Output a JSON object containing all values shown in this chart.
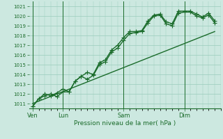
{
  "title": "",
  "xlabel": "Pression niveau de la mer( hPa )",
  "ylabel": "",
  "bg_color": "#cce8e0",
  "grid_color": "#99ccbb",
  "line_color": "#1a6b2a",
  "ylim": [
    1010.5,
    1021.5
  ],
  "yticks": [
    1011,
    1012,
    1013,
    1014,
    1015,
    1016,
    1017,
    1018,
    1019,
    1020,
    1021
  ],
  "xlim": [
    0,
    16
  ],
  "day_positions": [
    0.5,
    4.0,
    9.5,
    14.5
  ],
  "day_vlines": [
    0.0,
    2.5,
    7.5,
    12.5
  ],
  "day_labels": [
    "Ven",
    "Lun",
    "Sam",
    "Dim"
  ],
  "series1_x": [
    0.0,
    0.5,
    1.0,
    1.5,
    2.0,
    2.5,
    3.0,
    3.5,
    4.0,
    4.5,
    5.0,
    5.5,
    6.0,
    6.5,
    7.0,
    7.5,
    8.0,
    8.5,
    9.0,
    9.5,
    10.0,
    10.5,
    11.0,
    11.5,
    12.0,
    12.5,
    13.0,
    13.5,
    14.0,
    14.5,
    15.0
  ],
  "series1_y": [
    1010.7,
    1011.5,
    1012.0,
    1011.8,
    1012.1,
    1012.5,
    1012.2,
    1013.3,
    1013.8,
    1014.2,
    1014.0,
    1015.2,
    1015.5,
    1016.5,
    1017.0,
    1017.8,
    1018.4,
    1018.4,
    1018.5,
    1019.5,
    1020.1,
    1020.2,
    1019.4,
    1019.2,
    1020.5,
    1020.5,
    1020.5,
    1020.2,
    1019.9,
    1020.3,
    1019.5
  ],
  "series2_x": [
    0.0,
    0.5,
    1.0,
    1.5,
    2.0,
    2.5,
    3.0,
    3.5,
    4.0,
    4.5,
    5.0,
    5.5,
    6.0,
    6.5,
    7.0,
    7.5,
    8.0,
    8.5,
    9.0,
    9.5,
    10.0,
    10.5,
    11.0,
    11.5,
    12.0,
    12.5,
    13.0,
    13.5,
    14.0,
    14.5,
    15.0
  ],
  "series2_y": [
    1010.7,
    1011.5,
    1011.8,
    1012.0,
    1011.7,
    1012.2,
    1012.2,
    1013.3,
    1013.8,
    1013.5,
    1013.9,
    1015.0,
    1015.3,
    1016.3,
    1016.7,
    1017.5,
    1018.2,
    1018.3,
    1018.4,
    1019.3,
    1020.0,
    1020.1,
    1019.2,
    1019.0,
    1020.3,
    1020.4,
    1020.4,
    1020.0,
    1019.8,
    1020.1,
    1019.3
  ],
  "trend_x": [
    0.0,
    15.0
  ],
  "trend_y": [
    1011.0,
    1018.4
  ],
  "marker": "+",
  "markersize": 4,
  "linewidth": 1.0
}
